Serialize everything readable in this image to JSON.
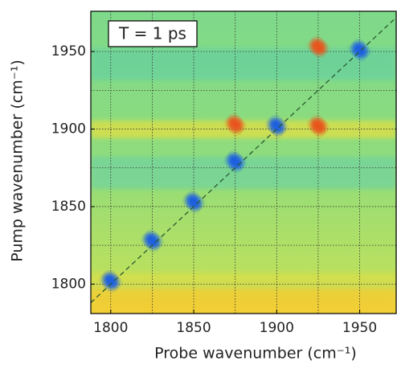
{
  "chart_data": {
    "type": "heatmap",
    "annotation": "T = 1 ps",
    "xlabel": "Probe wavenumber (cm⁻¹)",
    "ylabel": "Pump wavenumber (cm⁻¹)",
    "xlim": [
      1788,
      1972
    ],
    "ylim": [
      1781,
      1976
    ],
    "xticks": [
      1800,
      1850,
      1900,
      1950
    ],
    "yticks": [
      1800,
      1850,
      1900,
      1950
    ],
    "minor_xticks": [
      1825,
      1875,
      1925
    ],
    "minor_yticks": [
      1825,
      1875,
      1925
    ],
    "grid": true,
    "diagonal": true,
    "negative_color": "#1f5fe0",
    "positive_color": "#e8541c",
    "negative_peaks": [
      {
        "x": 1800,
        "y": 1802
      },
      {
        "x": 1825,
        "y": 1828
      },
      {
        "x": 1850,
        "y": 1853
      },
      {
        "x": 1875,
        "y": 1879
      },
      {
        "x": 1900,
        "y": 1902
      },
      {
        "x": 1950,
        "y": 1951
      }
    ],
    "positive_peaks": [
      {
        "x": 1875,
        "y": 1903
      },
      {
        "x": 1925,
        "y": 1953
      },
      {
        "x": 1925,
        "y": 1902
      }
    ]
  }
}
